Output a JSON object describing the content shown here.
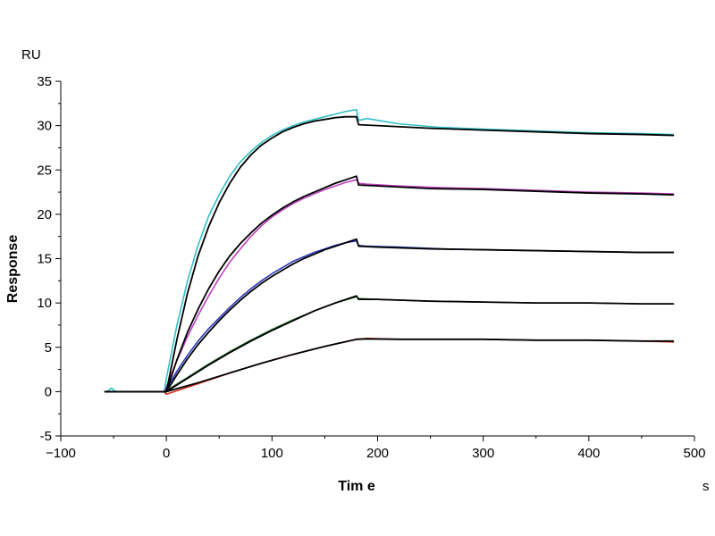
{
  "chart_data": {
    "type": "line",
    "title": "",
    "xlabel": "Tim e",
    "ylabel": "Response",
    "x_unit": "s",
    "y_unit": "RU",
    "xlim": [
      -100,
      500
    ],
    "ylim": [
      -5,
      35
    ],
    "x_ticks": [
      -100,
      0,
      100,
      200,
      300,
      400,
      500
    ],
    "y_ticks": [
      -5,
      0,
      5,
      10,
      15,
      20,
      25,
      30,
      35
    ],
    "grid": false,
    "legend": "none",
    "series": [
      {
        "color": "#30c0c8",
        "points": [
          [
            -58,
            0
          ],
          [
            -55,
            0.1
          ],
          [
            -52,
            0.4
          ],
          [
            -48,
            0
          ],
          [
            -40,
            0
          ],
          [
            -20,
            0
          ],
          [
            -2,
            0
          ],
          [
            0,
            1.5
          ],
          [
            10,
            7.5
          ],
          [
            20,
            12.5
          ],
          [
            30,
            16.5
          ],
          [
            40,
            19.8
          ],
          [
            50,
            22.2
          ],
          [
            60,
            24.3
          ],
          [
            70,
            25.9
          ],
          [
            80,
            27.1
          ],
          [
            90,
            28.1
          ],
          [
            100,
            28.9
          ],
          [
            110,
            29.5
          ],
          [
            120,
            30.0
          ],
          [
            130,
            30.4
          ],
          [
            140,
            30.7
          ],
          [
            150,
            31.0
          ],
          [
            160,
            31.3
          ],
          [
            170,
            31.6
          ],
          [
            180,
            31.8
          ],
          [
            182,
            30.6
          ],
          [
            190,
            30.8
          ],
          [
            200,
            30.6
          ],
          [
            220,
            30.2
          ],
          [
            260,
            29.8
          ],
          [
            300,
            29.6
          ],
          [
            350,
            29.4
          ],
          [
            400,
            29.2
          ],
          [
            450,
            29.1
          ],
          [
            480,
            29.0
          ]
        ]
      },
      {
        "color": "#c040c0",
        "points": [
          [
            -58,
            0
          ],
          [
            -2,
            0
          ],
          [
            0,
            0.5
          ],
          [
            10,
            3.5
          ],
          [
            20,
            6.2
          ],
          [
            30,
            8.6
          ],
          [
            40,
            10.8
          ],
          [
            50,
            12.8
          ],
          [
            60,
            14.6
          ],
          [
            70,
            16.1
          ],
          [
            80,
            17.5
          ],
          [
            90,
            18.7
          ],
          [
            100,
            19.7
          ],
          [
            110,
            20.5
          ],
          [
            120,
            21.2
          ],
          [
            130,
            21.8
          ],
          [
            140,
            22.3
          ],
          [
            150,
            22.8
          ],
          [
            160,
            23.2
          ],
          [
            170,
            23.6
          ],
          [
            180,
            23.9
          ],
          [
            182,
            23.5
          ],
          [
            190,
            23.4
          ],
          [
            220,
            23.2
          ],
          [
            260,
            23.0
          ],
          [
            300,
            22.9
          ],
          [
            350,
            22.7
          ],
          [
            400,
            22.5
          ],
          [
            450,
            22.4
          ],
          [
            480,
            22.3
          ]
        ]
      },
      {
        "color": "#2838b8",
        "points": [
          [
            -58,
            0
          ],
          [
            -2,
            0
          ],
          [
            0,
            0.3
          ],
          [
            10,
            2.3
          ],
          [
            20,
            4.1
          ],
          [
            30,
            5.7
          ],
          [
            40,
            7.1
          ],
          [
            50,
            8.3
          ],
          [
            60,
            9.5
          ],
          [
            70,
            10.6
          ],
          [
            80,
            11.6
          ],
          [
            90,
            12.5
          ],
          [
            100,
            13.3
          ],
          [
            110,
            14.0
          ],
          [
            120,
            14.7
          ],
          [
            130,
            15.2
          ],
          [
            140,
            15.7
          ],
          [
            150,
            16.1
          ],
          [
            160,
            16.5
          ],
          [
            170,
            16.8
          ],
          [
            180,
            17.0
          ],
          [
            182,
            16.5
          ],
          [
            190,
            16.4
          ],
          [
            220,
            16.3
          ],
          [
            260,
            16.1
          ],
          [
            300,
            16.0
          ],
          [
            350,
            15.9
          ],
          [
            400,
            15.8
          ],
          [
            450,
            15.7
          ],
          [
            480,
            15.7
          ]
        ]
      },
      {
        "color": "#207830",
        "points": [
          [
            -58,
            0
          ],
          [
            -2,
            0
          ],
          [
            0,
            0.1
          ],
          [
            20,
            1.6
          ],
          [
            40,
            3.1
          ],
          [
            60,
            4.5
          ],
          [
            80,
            5.8
          ],
          [
            100,
            7.0
          ],
          [
            120,
            8.1
          ],
          [
            140,
            9.1
          ],
          [
            160,
            10.0
          ],
          [
            180,
            10.7
          ],
          [
            182,
            10.5
          ],
          [
            200,
            10.4
          ],
          [
            250,
            10.2
          ],
          [
            300,
            10.1
          ],
          [
            350,
            10.0
          ],
          [
            400,
            10.0
          ],
          [
            450,
            9.9
          ],
          [
            480,
            9.9
          ]
        ]
      },
      {
        "color": "#d83020",
        "points": [
          [
            -58,
            0
          ],
          [
            -2,
            0
          ],
          [
            0,
            -0.3
          ],
          [
            10,
            0.1
          ],
          [
            30,
            0.9
          ],
          [
            60,
            2.1
          ],
          [
            90,
            3.2
          ],
          [
            120,
            4.2
          ],
          [
            150,
            5.1
          ],
          [
            180,
            5.9
          ],
          [
            190,
            6.0
          ],
          [
            220,
            5.9
          ],
          [
            260,
            5.9
          ],
          [
            300,
            5.9
          ],
          [
            350,
            5.8
          ],
          [
            400,
            5.8
          ],
          [
            450,
            5.7
          ],
          [
            480,
            5.6
          ]
        ]
      },
      {
        "color": "#000000",
        "points": [
          [
            -58,
            0
          ],
          [
            -2,
            0
          ],
          [
            0,
            0
          ],
          [
            10,
            5.9
          ],
          [
            20,
            11.1
          ],
          [
            30,
            15.3
          ],
          [
            40,
            18.6
          ],
          [
            50,
            21.3
          ],
          [
            60,
            23.5
          ],
          [
            70,
            25.3
          ],
          [
            80,
            26.7
          ],
          [
            90,
            27.8
          ],
          [
            100,
            28.6
          ],
          [
            110,
            29.3
          ],
          [
            120,
            29.8
          ],
          [
            130,
            30.2
          ],
          [
            140,
            30.5
          ],
          [
            150,
            30.7
          ],
          [
            160,
            30.9
          ],
          [
            170,
            31.0
          ],
          [
            180,
            31.0
          ],
          [
            182,
            30.1
          ],
          [
            200,
            30.0
          ],
          [
            250,
            29.7
          ],
          [
            300,
            29.5
          ],
          [
            350,
            29.3
          ],
          [
            400,
            29.1
          ],
          [
            450,
            29.0
          ],
          [
            480,
            28.9
          ]
        ]
      },
      {
        "color": "#000000",
        "points": [
          [
            -58,
            0
          ],
          [
            -2,
            0
          ],
          [
            0,
            0
          ],
          [
            10,
            3.6
          ],
          [
            20,
            6.7
          ],
          [
            30,
            9.3
          ],
          [
            40,
            11.6
          ],
          [
            50,
            13.6
          ],
          [
            60,
            15.3
          ],
          [
            70,
            16.7
          ],
          [
            80,
            17.9
          ],
          [
            90,
            19.0
          ],
          [
            100,
            19.9
          ],
          [
            110,
            20.7
          ],
          [
            120,
            21.4
          ],
          [
            130,
            22.0
          ],
          [
            140,
            22.5
          ],
          [
            150,
            23.0
          ],
          [
            160,
            23.5
          ],
          [
            170,
            23.9
          ],
          [
            180,
            24.3
          ],
          [
            182,
            23.3
          ],
          [
            200,
            23.2
          ],
          [
            250,
            22.9
          ],
          [
            300,
            22.8
          ],
          [
            350,
            22.6
          ],
          [
            400,
            22.4
          ],
          [
            450,
            22.3
          ],
          [
            480,
            22.2
          ]
        ]
      },
      {
        "color": "#000000",
        "points": [
          [
            -58,
            0
          ],
          [
            -2,
            0
          ],
          [
            0,
            0
          ],
          [
            10,
            1.9
          ],
          [
            20,
            3.7
          ],
          [
            30,
            5.3
          ],
          [
            40,
            6.7
          ],
          [
            50,
            8.0
          ],
          [
            60,
            9.2
          ],
          [
            70,
            10.3
          ],
          [
            80,
            11.3
          ],
          [
            90,
            12.2
          ],
          [
            100,
            13.0
          ],
          [
            110,
            13.7
          ],
          [
            120,
            14.4
          ],
          [
            130,
            15.0
          ],
          [
            140,
            15.5
          ],
          [
            150,
            16.0
          ],
          [
            160,
            16.4
          ],
          [
            170,
            16.8
          ],
          [
            180,
            17.2
          ],
          [
            182,
            16.4
          ],
          [
            200,
            16.3
          ],
          [
            250,
            16.1
          ],
          [
            300,
            16.0
          ],
          [
            350,
            15.9
          ],
          [
            400,
            15.8
          ],
          [
            450,
            15.7
          ],
          [
            480,
            15.7
          ]
        ]
      },
      {
        "color": "#000000",
        "points": [
          [
            -58,
            0
          ],
          [
            -2,
            0
          ],
          [
            0,
            0
          ],
          [
            20,
            1.5
          ],
          [
            40,
            3.0
          ],
          [
            60,
            4.4
          ],
          [
            80,
            5.7
          ],
          [
            100,
            6.9
          ],
          [
            120,
            8.0
          ],
          [
            140,
            9.1
          ],
          [
            160,
            10.0
          ],
          [
            180,
            10.8
          ],
          [
            182,
            10.4
          ],
          [
            200,
            10.4
          ],
          [
            250,
            10.2
          ],
          [
            300,
            10.1
          ],
          [
            350,
            10.0
          ],
          [
            400,
            10.0
          ],
          [
            450,
            9.9
          ],
          [
            480,
            9.9
          ]
        ]
      },
      {
        "color": "#000000",
        "points": [
          [
            -58,
            0
          ],
          [
            -2,
            0
          ],
          [
            0,
            0
          ],
          [
            30,
            1.0
          ],
          [
            60,
            2.1
          ],
          [
            90,
            3.2
          ],
          [
            120,
            4.2
          ],
          [
            150,
            5.1
          ],
          [
            180,
            5.9
          ],
          [
            190,
            5.95
          ],
          [
            220,
            5.9
          ],
          [
            260,
            5.9
          ],
          [
            300,
            5.9
          ],
          [
            350,
            5.8
          ],
          [
            400,
            5.8
          ],
          [
            450,
            5.7
          ],
          [
            480,
            5.7
          ]
        ]
      }
    ]
  }
}
